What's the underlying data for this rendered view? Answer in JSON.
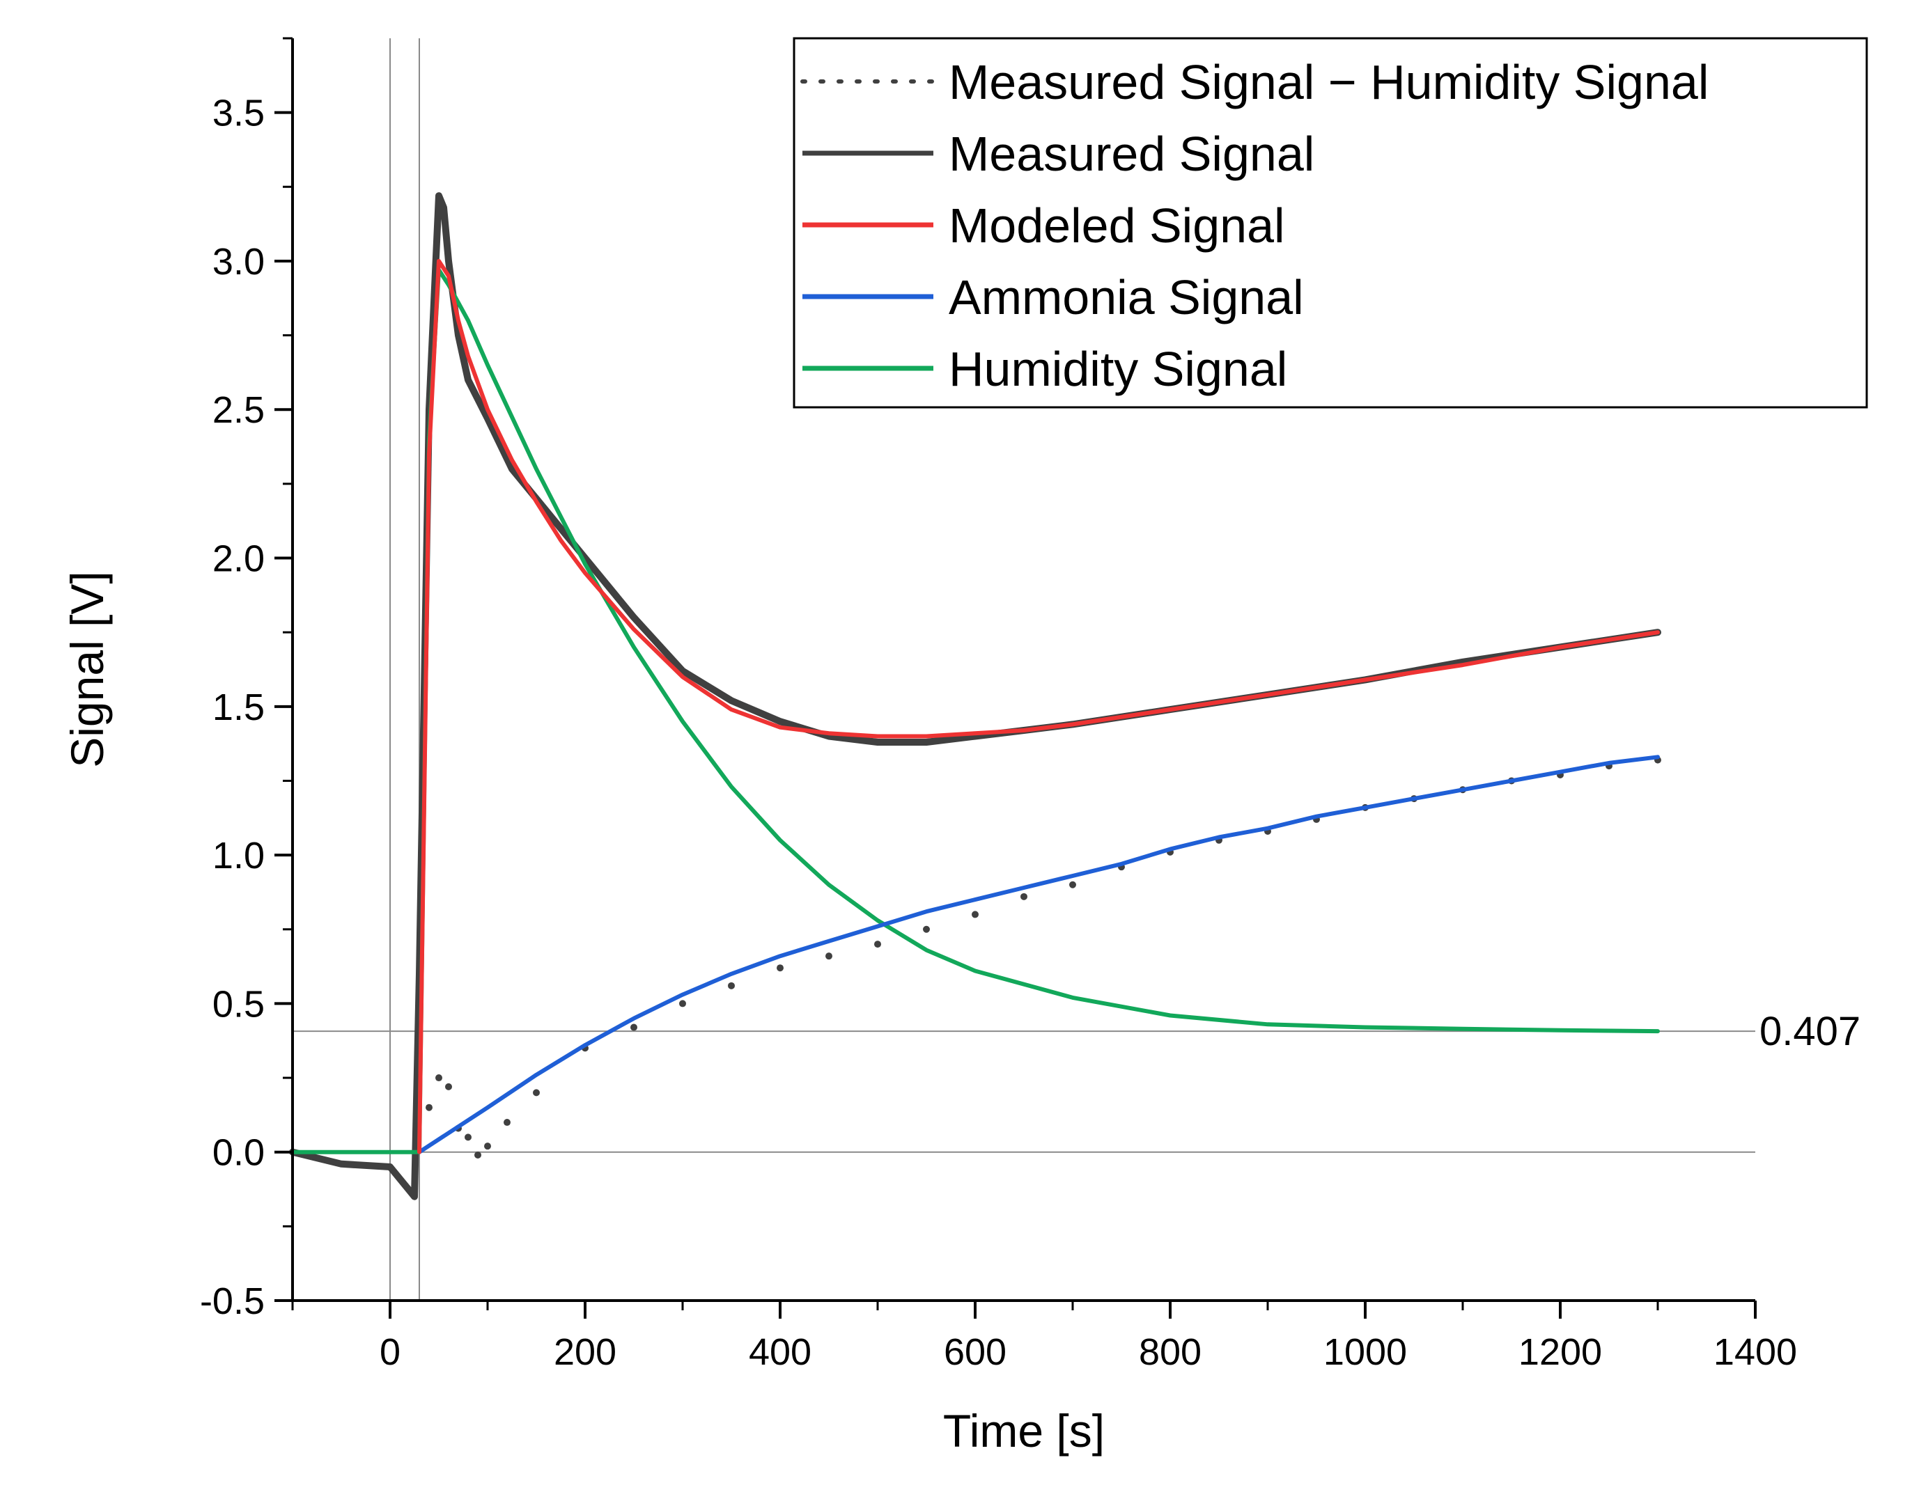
{
  "chart_data": {
    "type": "line",
    "title": "",
    "xlabel": "Time [s]",
    "ylabel": "Signal [V]",
    "xlim": [
      -100,
      1400
    ],
    "ylim": [
      -0.5,
      3.75
    ],
    "x_ticks": [
      0,
      200,
      400,
      600,
      800,
      1000,
      1200,
      1400
    ],
    "x_tick_labels": [
      "0",
      "200",
      "400",
      "600",
      "800",
      "1000",
      "1200",
      "1400"
    ],
    "y_ticks": [
      -0.5,
      0.0,
      0.5,
      1.0,
      1.5,
      2.0,
      2.5,
      3.0,
      3.5
    ],
    "y_tick_labels": [
      "-0.5",
      "0.0",
      "0.5",
      "1.0",
      "1.5",
      "2.0",
      "2.5",
      "3.0",
      "3.5"
    ],
    "legend_position": "top-right",
    "vertical_reference_lines": [
      0,
      30
    ],
    "horizontal_reference_lines": [
      0.0,
      0.407
    ],
    "reference_annotation": "0.407",
    "series": [
      {
        "name": "Measured Signal − Humidity Signal",
        "style": "dotted",
        "color": "#404040",
        "x": [
          40,
          50,
          60,
          70,
          80,
          90,
          100,
          120,
          150,
          200,
          250,
          300,
          350,
          400,
          450,
          500,
          550,
          600,
          650,
          700,
          750,
          800,
          850,
          900,
          950,
          1000,
          1050,
          1100,
          1150,
          1200,
          1250,
          1300
        ],
        "values": [
          0.15,
          0.25,
          0.22,
          0.08,
          0.05,
          -0.01,
          0.02,
          0.1,
          0.2,
          0.35,
          0.42,
          0.5,
          0.56,
          0.62,
          0.66,
          0.7,
          0.75,
          0.8,
          0.86,
          0.9,
          0.96,
          1.01,
          1.05,
          1.08,
          1.12,
          1.16,
          1.19,
          1.22,
          1.25,
          1.27,
          1.3,
          1.32
        ]
      },
      {
        "name": "Measured Signal",
        "style": "solid",
        "color": "#404040",
        "x": [
          -100,
          -50,
          0,
          25,
          30,
          40,
          50,
          55,
          60,
          70,
          80,
          100,
          125,
          150,
          175,
          200,
          250,
          300,
          350,
          400,
          450,
          500,
          550,
          600,
          650,
          700,
          800,
          900,
          1000,
          1100,
          1200,
          1300
        ],
        "values": [
          0.0,
          -0.04,
          -0.05,
          -0.15,
          0.6,
          2.5,
          3.22,
          3.18,
          3.0,
          2.75,
          2.6,
          2.47,
          2.3,
          2.2,
          2.1,
          2.0,
          1.8,
          1.62,
          1.52,
          1.45,
          1.4,
          1.38,
          1.38,
          1.4,
          1.42,
          1.44,
          1.49,
          1.54,
          1.59,
          1.65,
          1.7,
          1.75
        ]
      },
      {
        "name": "Modeled Signal",
        "style": "solid",
        "color": "#ee3333",
        "x": [
          30,
          40,
          50,
          60,
          70,
          80,
          100,
          125,
          150,
          175,
          200,
          250,
          300,
          350,
          400,
          450,
          500,
          550,
          600,
          650,
          700,
          800,
          900,
          1000,
          1100,
          1200,
          1300
        ],
        "values": [
          0.0,
          2.35,
          3.0,
          2.95,
          2.8,
          2.68,
          2.5,
          2.33,
          2.19,
          2.06,
          1.95,
          1.76,
          1.6,
          1.49,
          1.43,
          1.41,
          1.4,
          1.4,
          1.41,
          1.42,
          1.44,
          1.49,
          1.54,
          1.59,
          1.64,
          1.7,
          1.75
        ]
      },
      {
        "name": "Ammonia Signal",
        "style": "solid",
        "color": "#1f5fd6",
        "x": [
          30,
          100,
          150,
          200,
          250,
          300,
          350,
          400,
          450,
          500,
          550,
          600,
          650,
          700,
          750,
          800,
          850,
          900,
          950,
          1000,
          1050,
          1100,
          1150,
          1200,
          1250,
          1300
        ],
        "values": [
          0.0,
          0.15,
          0.26,
          0.36,
          0.45,
          0.53,
          0.6,
          0.66,
          0.71,
          0.76,
          0.81,
          0.85,
          0.89,
          0.93,
          0.97,
          1.02,
          1.06,
          1.09,
          1.13,
          1.16,
          1.19,
          1.22,
          1.25,
          1.28,
          1.31,
          1.33
        ]
      },
      {
        "name": "Humidity Signal",
        "style": "solid",
        "color": "#12a85a",
        "x": [
          -100,
          0,
          30,
          40,
          50,
          60,
          80,
          100,
          150,
          200,
          250,
          300,
          350,
          400,
          450,
          500,
          550,
          600,
          700,
          800,
          900,
          1000,
          1100,
          1200,
          1300
        ],
        "values": [
          0.0,
          0.0,
          0.0,
          2.4,
          2.97,
          2.92,
          2.8,
          2.65,
          2.3,
          1.98,
          1.7,
          1.45,
          1.23,
          1.05,
          0.9,
          0.78,
          0.68,
          0.61,
          0.52,
          0.46,
          0.43,
          0.42,
          0.415,
          0.41,
          0.407
        ]
      }
    ]
  }
}
